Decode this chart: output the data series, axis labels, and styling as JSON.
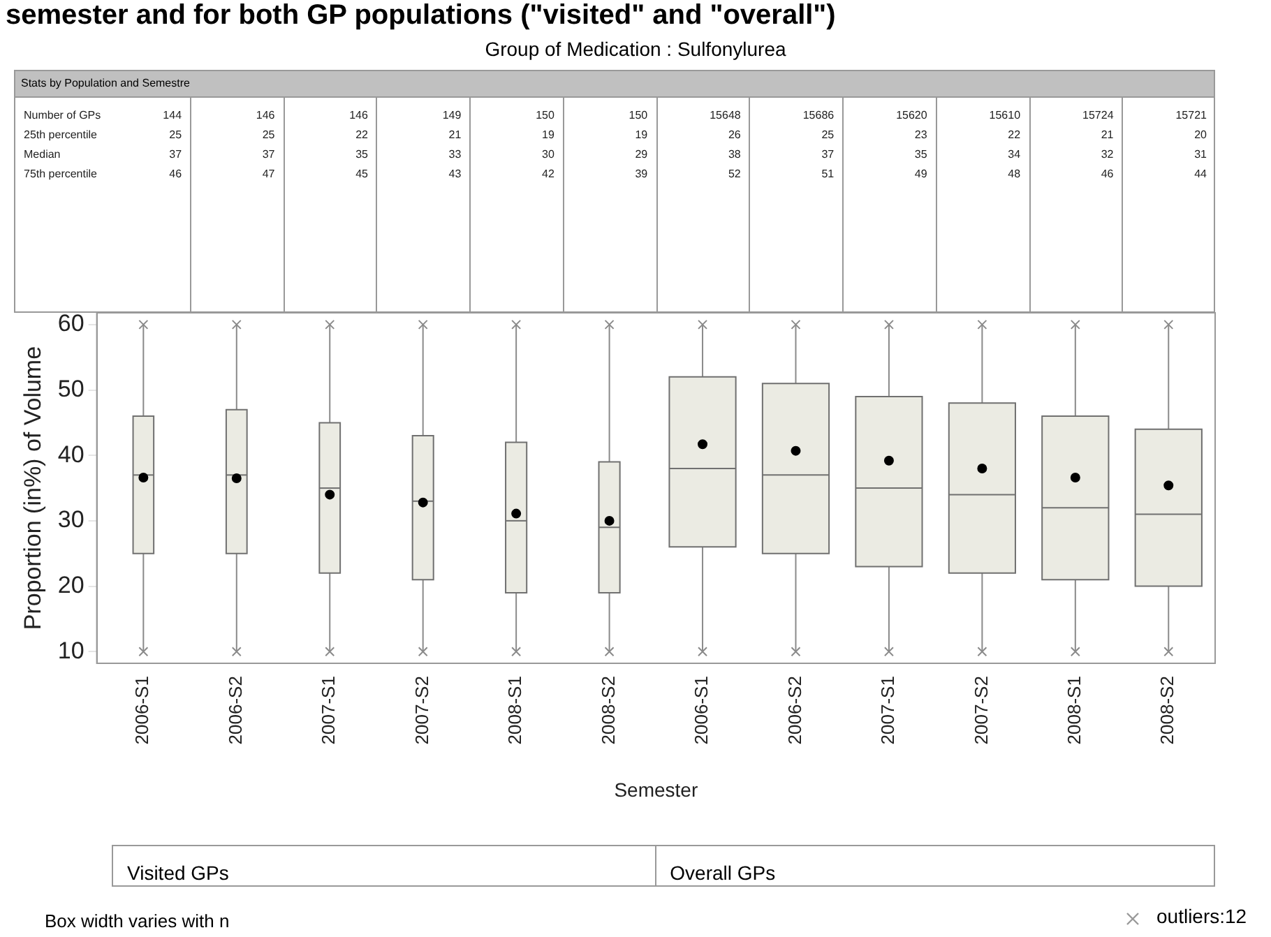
{
  "chart_data": {
    "type": "box",
    "title": "semester and for both GP populations (\"visited\" and \"overall\")",
    "subtitle": "Group of Medication : Sulfonylurea",
    "xlabel": "Semester",
    "ylabel": "Proportion (in%) of Volume",
    "categories": [
      "2006-S1",
      "2006-S2",
      "2007-S1",
      "2007-S2",
      "2008-S1",
      "2008-S2",
      "2006-S1",
      "2006-S2",
      "2007-S1",
      "2007-S2",
      "2008-S1",
      "2008-S2"
    ],
    "series": [
      {
        "color": "#ebebe3",
        "boxes": [
          {
            "low": 10,
            "q1": 25,
            "median": 37,
            "q3": 46,
            "high": 60,
            "mean": 36.6,
            "outliers": [
              10,
              60
            ]
          },
          {
            "low": 10,
            "q1": 25,
            "median": 37,
            "q3": 47,
            "high": 60,
            "mean": 36.5,
            "outliers": [
              10,
              60
            ]
          },
          {
            "low": 10,
            "q1": 22,
            "median": 35,
            "q3": 45,
            "high": 60,
            "mean": 34.0,
            "outliers": [
              10,
              60
            ]
          },
          {
            "low": 10,
            "q1": 21,
            "median": 33,
            "q3": 43,
            "high": 60,
            "mean": 32.8,
            "outliers": [
              10,
              60
            ]
          },
          {
            "low": 10,
            "q1": 19,
            "median": 30,
            "q3": 42,
            "high": 60,
            "mean": 31.1,
            "outliers": [
              10,
              60
            ]
          },
          {
            "low": 10,
            "q1": 19,
            "median": 29,
            "q3": 39,
            "high": 60,
            "mean": 30.0,
            "outliers": [
              10,
              60
            ]
          },
          {
            "low": 10,
            "q1": 26,
            "median": 38,
            "q3": 52,
            "high": 60,
            "mean": 41.7,
            "outliers": [
              10,
              60
            ]
          },
          {
            "low": 10,
            "q1": 25,
            "median": 37,
            "q3": 51,
            "high": 60,
            "mean": 40.7,
            "outliers": [
              10,
              60
            ]
          },
          {
            "low": 10,
            "q1": 23,
            "median": 35,
            "q3": 49,
            "high": 60,
            "mean": 39.2,
            "outliers": [
              10,
              60
            ]
          },
          {
            "low": 10,
            "q1": 22,
            "median": 34,
            "q3": 48,
            "high": 60,
            "mean": 38.0,
            "outliers": [
              10,
              60
            ]
          },
          {
            "low": 10,
            "q1": 21,
            "median": 32,
            "q3": 46,
            "high": 60,
            "mean": 36.6,
            "outliers": [
              10,
              60
            ]
          },
          {
            "low": 10,
            "q1": 20,
            "median": 31,
            "q3": 44,
            "high": 60,
            "mean": 35.4,
            "outliers": [
              10,
              60
            ]
          }
        ]
      }
    ],
    "ylim": [
      8.2,
      61.8
    ],
    "yticks": [
      10,
      20,
      30,
      40,
      50,
      60
    ],
    "grid": false,
    "legend": false,
    "marker": "circle",
    "annotations": [
      "Stats by Population and Semestre",
      "Number of GPs",
      "25th percentile",
      "Median",
      "75th percentile",
      "144",
      "146",
      "146",
      "149",
      "150",
      "150",
      "15648",
      "15686",
      "15620",
      "15610",
      "15724",
      "15721",
      "25",
      "25",
      "22",
      "21",
      "19",
      "19",
      "26",
      "25",
      "23",
      "22",
      "21",
      "20",
      "37",
      "37",
      "35",
      "33",
      "30",
      "29",
      "38",
      "37",
      "35",
      "34",
      "32",
      "31",
      "46",
      "47",
      "45",
      "43",
      "42",
      "39",
      "52",
      "51",
      "49",
      "48",
      "46",
      "44",
      "Visited GPs",
      "Overall GPs",
      "Box width varies with n",
      "outliers:12"
    ]
  }
}
